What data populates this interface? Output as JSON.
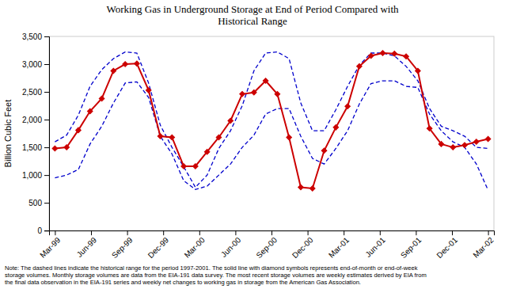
{
  "chart_data": {
    "type": "line",
    "title": "Working Gas in Underground Storage at End of Period Compared with\nHistorical Range",
    "y_label": "Billion Cubic Feet",
    "note": "Note: The dashed lines indicate the historical range for the period 1997-2001.  The solid line with diamond symbols represents end-of-month or end-of-week\nstorage volumes.  Monthly storage volumes are data from the EIA-191 data survey.  The most recent storage volumes are weekly estimates derived by EIA from\nthe final data observation in the EIA-191 series and weekly net changes to working gas in storage from the American Gas Association.",
    "x": [
      0,
      1,
      2,
      3,
      4,
      5,
      6,
      7,
      8,
      9,
      10,
      11,
      12,
      13,
      14,
      15,
      16,
      17,
      18,
      19,
      20,
      21,
      22,
      23,
      24,
      25,
      26,
      27,
      28,
      29,
      30,
      31,
      32,
      33,
      34,
      35,
      36,
      37
    ],
    "xlim": [
      -0.5,
      37.5
    ],
    "xticks": [
      {
        "value": 0,
        "label": "Mar-99"
      },
      {
        "value": 3.0833333333333335,
        "label": "Jun-99"
      },
      {
        "value": 6.166666666666667,
        "label": "Sep-99"
      },
      {
        "value": 9.25,
        "label": "Dec-99"
      },
      {
        "value": 12.333333333333334,
        "label": "Mar-00"
      },
      {
        "value": 15.416666666666666,
        "label": "Jun-00"
      },
      {
        "value": 18.5,
        "label": "Sep-00"
      },
      {
        "value": 21.583333333333332,
        "label": "Dec-00"
      },
      {
        "value": 24.666666666666668,
        "label": "Mar-01"
      },
      {
        "value": 27.75,
        "label": "Jun-01"
      },
      {
        "value": 30.833333333333332,
        "label": "Sep-01"
      },
      {
        "value": 33.916666666666664,
        "label": "Dec-01"
      },
      {
        "value": 37,
        "label": "Mar-02"
      }
    ],
    "ylim": [
      0,
      3500
    ],
    "yticks": [
      0,
      500,
      {
        "value": 1000,
        "label": "1,000"
      },
      {
        "value": 1500,
        "label": "1,500"
      },
      {
        "value": 2000,
        "label": "2,000"
      },
      {
        "value": 2500,
        "label": "2,500"
      },
      {
        "value": 3000,
        "label": "3,000"
      },
      {
        "value": 3500,
        "label": "3,500"
      }
    ],
    "grid": false,
    "series": [
      {
        "color": "#0000cc",
        "line_style": "dashed",
        "values": [
          1600,
          1720,
          2080,
          2600,
          2900,
          3100,
          3220,
          3200,
          2660,
          1900,
          1500,
          1150,
          780,
          1000,
          1480,
          1800,
          2250,
          2880,
          3200,
          3220,
          3100,
          2300,
          1800,
          1800,
          2180,
          2600,
          2980,
          3200,
          3200,
          3150,
          2960,
          2700,
          2200,
          1880,
          1800,
          1700,
          1500,
          1480
        ]
      },
      {
        "color": "#0000cc",
        "line_style": "dashed",
        "values": [
          950,
          1000,
          1100,
          1560,
          1880,
          2300,
          2660,
          2680,
          2400,
          1700,
          1380,
          900,
          740,
          800,
          1000,
          1200,
          1500,
          1720,
          2100,
          2200,
          2200,
          1700,
          1300,
          1200,
          1480,
          1800,
          2280,
          2650,
          2700,
          2700,
          2600,
          2580,
          2100,
          1800,
          1600,
          1500,
          1200,
          730
        ]
      },
      {
        "color": "#cc0000",
        "line_style": "solid",
        "marker": "diamond",
        "values": [
          1480,
          1500,
          1810,
          2150,
          2380,
          2880,
          3000,
          3010,
          2530,
          1700,
          1680,
          1160,
          1160,
          1420,
          1680,
          1980,
          2460,
          2490,
          2700,
          2460,
          1680,
          780,
          760,
          1440,
          1860,
          2240,
          2960,
          3150,
          3200,
          3190,
          3140,
          2880,
          1840,
          1560,
          1500,
          1540,
          1600,
          1650
        ]
      }
    ]
  }
}
